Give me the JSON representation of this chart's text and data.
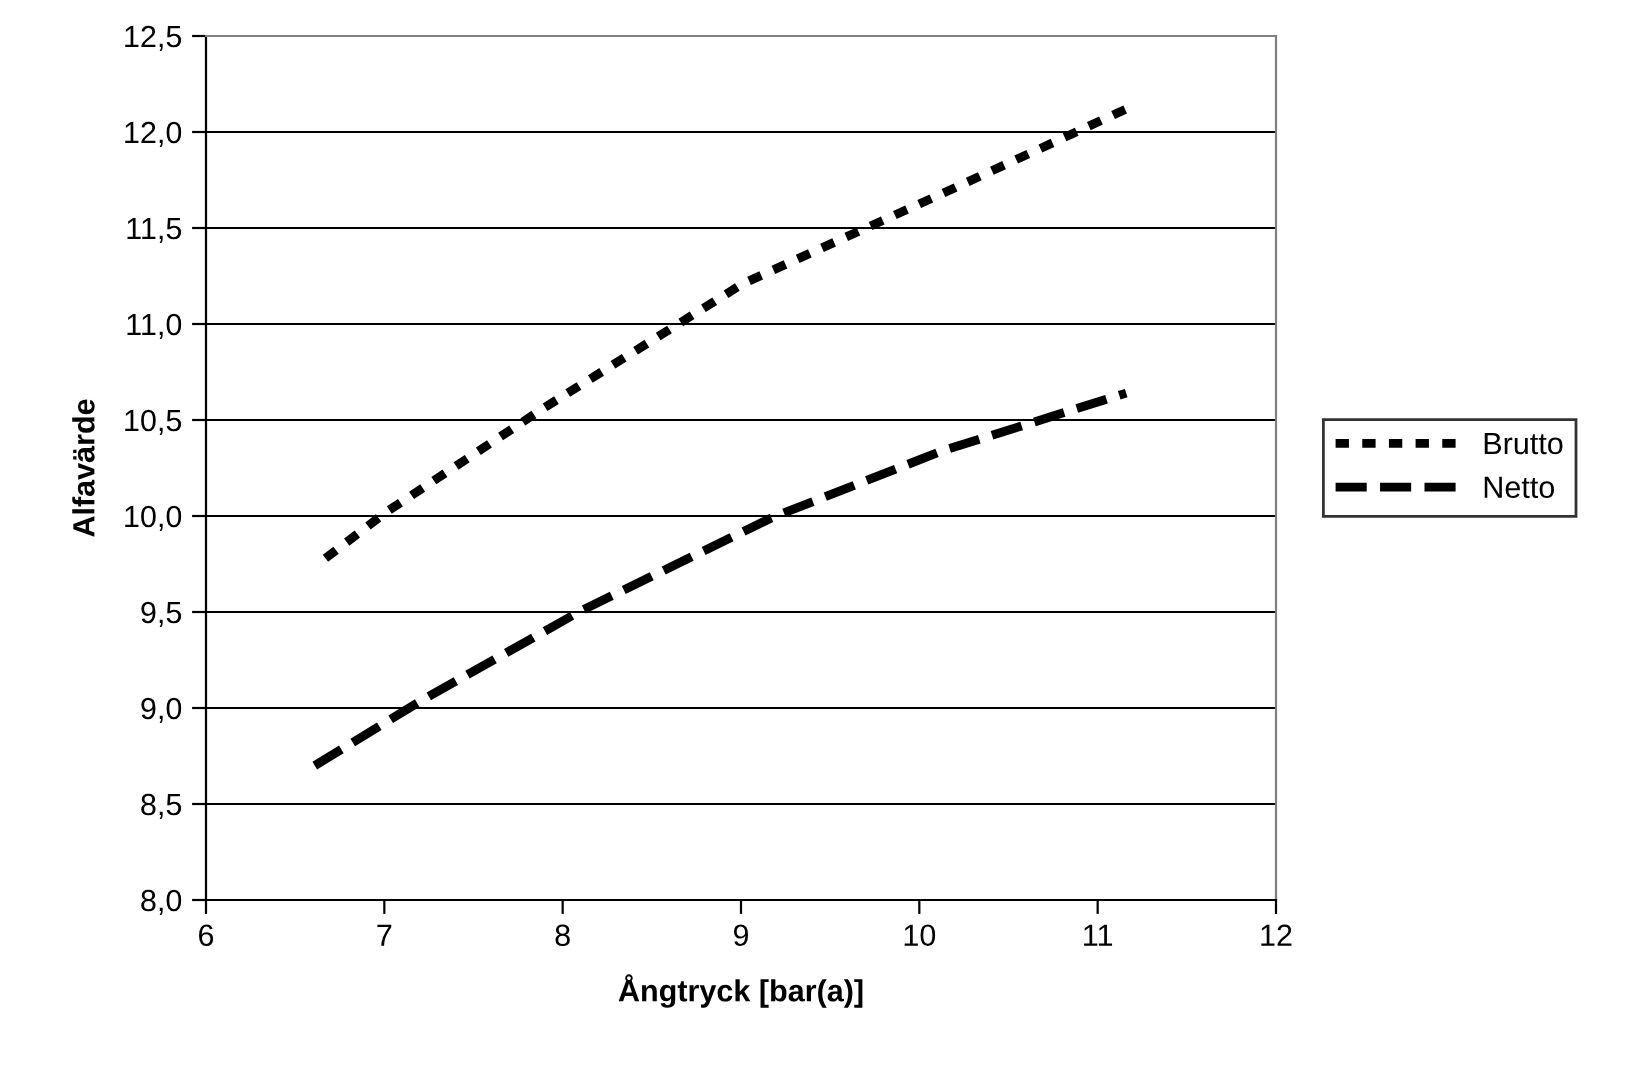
{
  "chart_data": {
    "type": "line",
    "xlabel": "Ångtryck [bar(a)]",
    "ylabel": "Alfavärde",
    "xlim": [
      6,
      12
    ],
    "xticks": [
      6,
      7,
      8,
      9,
      10,
      11,
      12
    ],
    "ylim": [
      8.0,
      12.5
    ],
    "yticks": [
      {
        "value": 8.0,
        "label": "8,0"
      },
      {
        "value": 8.5,
        "label": "8,5"
      },
      {
        "value": 9.0,
        "label": "9,0"
      },
      {
        "value": 9.5,
        "label": "9,5"
      },
      {
        "value": 10.0,
        "label": "10,0"
      },
      {
        "value": 10.5,
        "label": "10,5"
      },
      {
        "value": 11.0,
        "label": "11,0"
      },
      {
        "value": 11.5,
        "label": "11,5"
      },
      {
        "value": 12.0,
        "label": "12,0"
      },
      {
        "value": 12.5,
        "label": "12,5"
      }
    ],
    "grid": "y",
    "legend": "right",
    "marker": "none",
    "series": [
      {
        "name": "Brutto",
        "color": "#000000",
        "line_style": "dotted",
        "x": [
          6.67,
          7.01,
          7.89,
          9.01,
          10.13,
          11.16
        ],
        "values": [
          9.78,
          10.02,
          10.56,
          11.21,
          11.68,
          12.12
        ]
      },
      {
        "name": "Netto",
        "color": "#000000",
        "line_style": "dashed",
        "x": [
          6.61,
          7.21,
          8.09,
          9.17,
          10.13,
          11.16
        ],
        "values": [
          8.7,
          9.04,
          9.5,
          9.99,
          10.34,
          10.64
        ]
      }
    ]
  }
}
